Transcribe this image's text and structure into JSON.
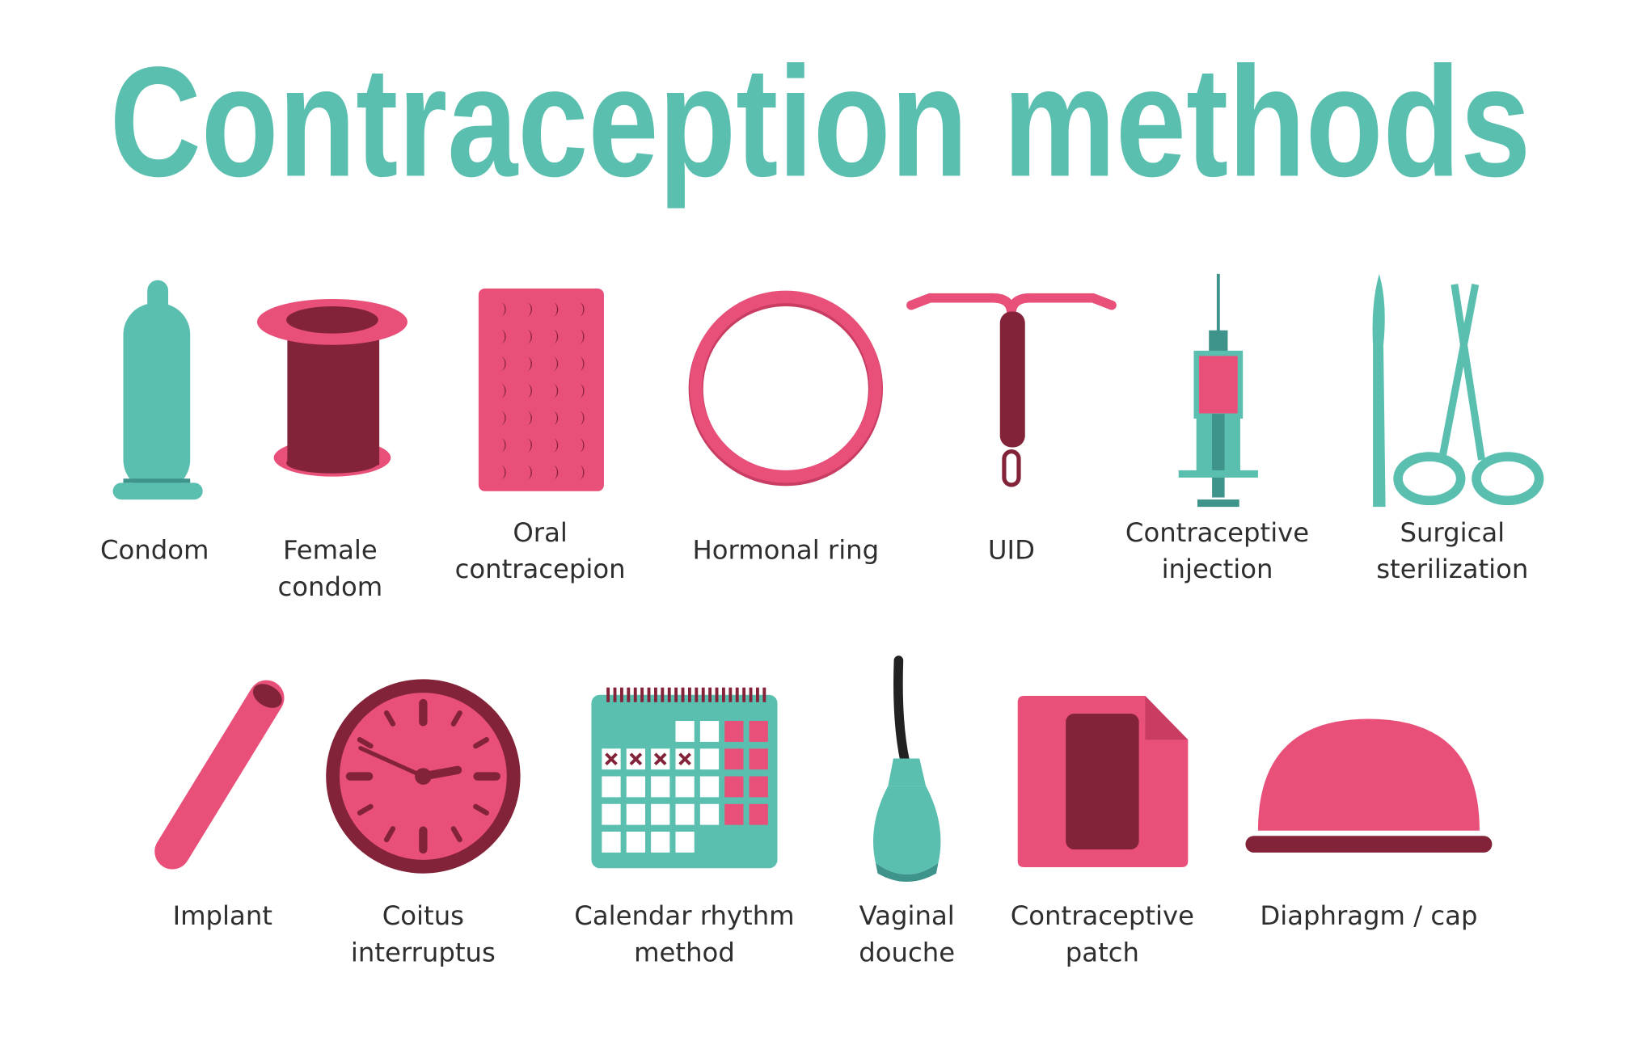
{
  "title": "Contraception methods",
  "colors": {
    "teal": "#5bbfb0",
    "teal_dark": "#3e948a",
    "pink": "#e8507a",
    "maroon": "#832339",
    "text": "#2e2e2e"
  },
  "methods": [
    {
      "icon": "condom-icon",
      "lines": [
        "Condom"
      ]
    },
    {
      "icon": "female-condom-icon",
      "lines": [
        "Female",
        "condom"
      ]
    },
    {
      "icon": "pill-pack-icon",
      "lines": [
        "Oral",
        "contracepion"
      ]
    },
    {
      "icon": "hormonal-ring-icon",
      "lines": [
        "Hormonal ring"
      ]
    },
    {
      "icon": "iud-icon",
      "lines": [
        "UID"
      ]
    },
    {
      "icon": "syringe-icon",
      "lines": [
        "Contraceptive",
        "injection"
      ]
    },
    {
      "icon": "scalpel-scissors-icon",
      "lines": [
        "Surgical",
        "sterilization"
      ]
    },
    {
      "icon": "implant-icon",
      "lines": [
        "Implant"
      ]
    },
    {
      "icon": "clock-icon",
      "lines": [
        "Coitus",
        "interruptus"
      ]
    },
    {
      "icon": "calendar-icon",
      "lines": [
        "Calendar rhythm",
        "method"
      ]
    },
    {
      "icon": "douche-icon",
      "lines": [
        "Vaginal",
        "douche"
      ]
    },
    {
      "icon": "patch-icon",
      "lines": [
        "Contraceptive",
        "patch"
      ]
    },
    {
      "icon": "diaphragm-icon",
      "lines": [
        "Diaphragm / cap"
      ]
    }
  ]
}
